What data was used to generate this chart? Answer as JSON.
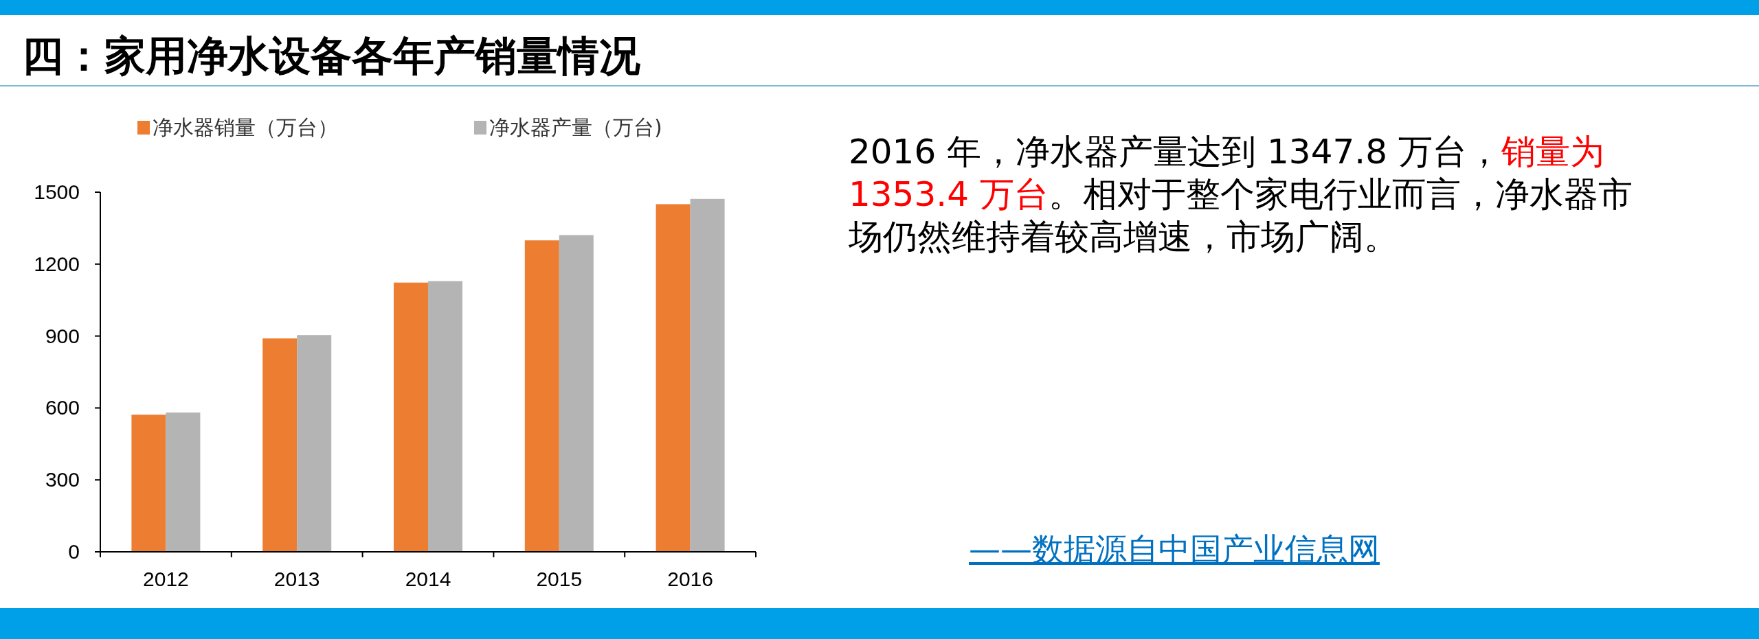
{
  "chart_data": {
    "type": "bar",
    "title": "四：家用净水设备各年产销量情况",
    "categories": [
      "2012",
      "2013",
      "2014",
      "2015",
      "2016"
    ],
    "series": [
      {
        "name": "净水器销量（万台）",
        "color": "#ed7d31",
        "values": [
          572,
          890,
          1123,
          1299,
          1450
        ]
      },
      {
        "name": "净水器产量（万台)",
        "color": "#b4b4b4",
        "values": [
          581,
          904,
          1129,
          1321,
          1472
        ]
      }
    ],
    "ylim": [
      0,
      1500
    ],
    "yticks": [
      0,
      300,
      600,
      900,
      1200,
      1500
    ],
    "grid": false,
    "legend": "top",
    "annotations": [
      "2016 年，净水器产量达到 1347.8 万台，",
      "销量为 1353.4 万台",
      "。相对于整个家电行业而言，净水器市场仍然维持着较高增速，市场广阔。",
      "——数据源自中国产业信息网"
    ]
  }
}
